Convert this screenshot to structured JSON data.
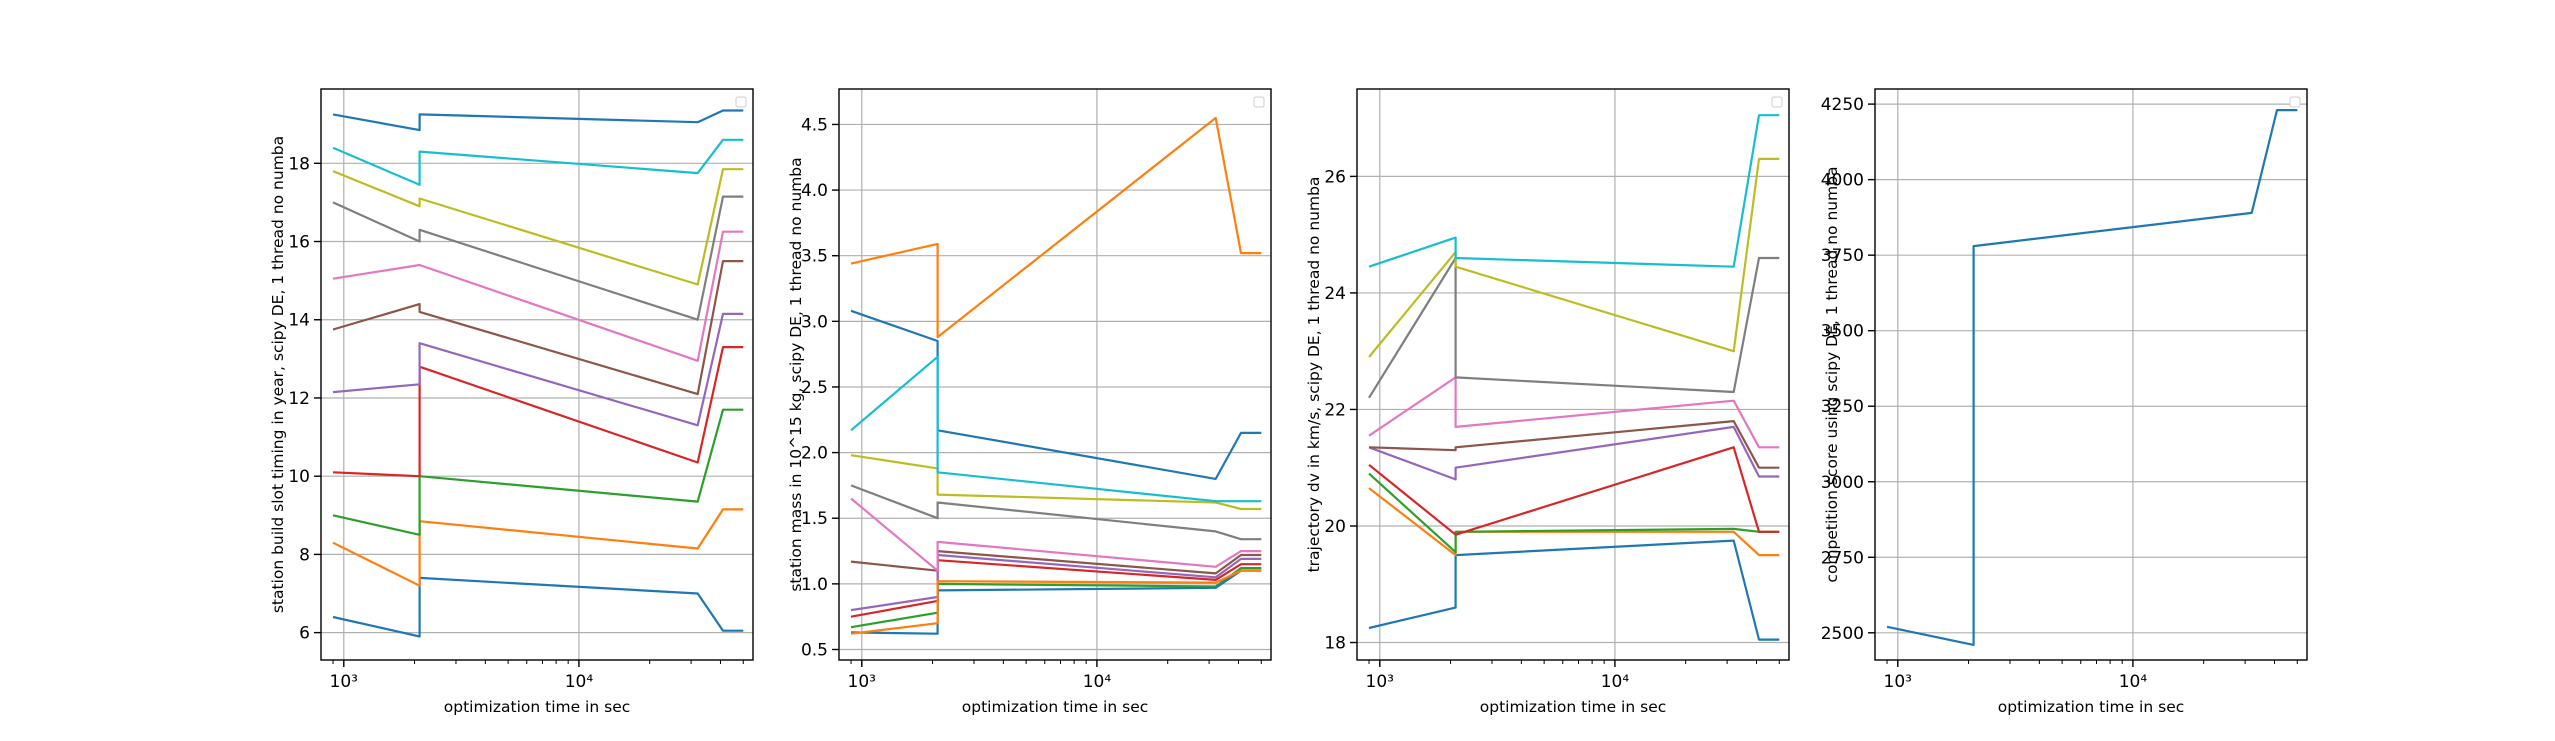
{
  "palette": [
    "#1f77b4",
    "#ff7f0e",
    "#2ca02c",
    "#d62728",
    "#9467bd",
    "#8c564b",
    "#e377c2",
    "#7f7f7f",
    "#bcbd22",
    "#17becf"
  ],
  "chart_data": [
    {
      "type": "line",
      "xscale": "log",
      "xlim": [
        800,
        55000
      ],
      "ylim": [
        5.3,
        19.9
      ],
      "xticks": [
        {
          "v": 1000,
          "label": "10³"
        },
        {
          "v": 10000,
          "label": "10⁴"
        }
      ],
      "yticks": [
        {
          "v": 6,
          "label": "6"
        },
        {
          "v": 8,
          "label": "8"
        },
        {
          "v": 10,
          "label": "10"
        },
        {
          "v": 12,
          "label": "12"
        },
        {
          "v": 14,
          "label": "14"
        },
        {
          "v": 16,
          "label": "16"
        },
        {
          "v": 18,
          "label": "18"
        }
      ],
      "xlabel": "optimization time in sec",
      "ylabel": "station build slot timing in year, scipy DE, 1 thread no numba",
      "grid": true,
      "legend": "top-right",
      "x": [
        900,
        2100,
        2100,
        32000,
        41000,
        50000
      ],
      "series": [
        {
          "values": [
            6.4,
            5.9,
            7.4,
            7.0,
            6.05,
            6.05
          ]
        },
        {
          "values": [
            8.3,
            7.2,
            8.85,
            8.15,
            9.15,
            9.15
          ]
        },
        {
          "values": [
            9.0,
            8.5,
            10.0,
            9.35,
            11.7,
            11.7
          ]
        },
        {
          "values": [
            10.1,
            10.0,
            12.8,
            10.35,
            13.3,
            13.3
          ]
        },
        {
          "values": [
            12.15,
            12.35,
            13.4,
            11.3,
            14.15,
            14.15
          ]
        },
        {
          "values": [
            13.75,
            14.4,
            14.2,
            12.1,
            15.5,
            15.5
          ]
        },
        {
          "values": [
            15.05,
            15.4,
            15.4,
            12.95,
            16.25,
            16.25
          ]
        },
        {
          "values": [
            17.0,
            16.0,
            16.3,
            14.0,
            17.15,
            17.15
          ]
        },
        {
          "values": [
            17.8,
            16.9,
            17.1,
            14.9,
            17.85,
            17.85
          ]
        },
        {
          "values": [
            18.4,
            17.45,
            18.3,
            17.75,
            18.6,
            18.6
          ]
        },
        {
          "values": [
            19.25,
            18.85,
            19.25,
            19.05,
            19.35,
            19.35
          ]
        }
      ]
    },
    {
      "type": "line",
      "xscale": "log",
      "xlim": [
        800,
        55000
      ],
      "ylim": [
        0.42,
        4.77
      ],
      "xticks": [
        {
          "v": 1000,
          "label": "10³"
        },
        {
          "v": 10000,
          "label": "10⁴"
        }
      ],
      "yticks": [
        {
          "v": 0.5,
          "label": "0.5"
        },
        {
          "v": 1.0,
          "label": "1.0"
        },
        {
          "v": 1.5,
          "label": "1.5"
        },
        {
          "v": 2.0,
          "label": "2.0"
        },
        {
          "v": 2.5,
          "label": "2.5"
        },
        {
          "v": 3.0,
          "label": "3.0"
        },
        {
          "v": 3.5,
          "label": "3.5"
        },
        {
          "v": 4.0,
          "label": "4.0"
        },
        {
          "v": 4.5,
          "label": "4.5"
        }
      ],
      "xlabel": "optimization time in sec",
      "ylabel": "station mass in 10^15 kg, scipy DE, 1 thread no numba",
      "grid": true,
      "legend": "top-right",
      "x": [
        900,
        2100,
        2100,
        32000,
        41000,
        50000
      ],
      "series": [
        {
          "values": [
            3.08,
            2.85,
            2.17,
            1.8,
            2.15,
            2.15
          ]
        },
        {
          "values": [
            3.44,
            3.59,
            2.88,
            4.55,
            3.52,
            3.52
          ]
        },
        {
          "values": [
            0.67,
            0.78,
            1.0,
            0.98,
            1.12,
            1.12
          ]
        },
        {
          "values": [
            0.75,
            0.87,
            1.18,
            1.03,
            1.15,
            1.15
          ]
        },
        {
          "values": [
            0.8,
            0.9,
            1.22,
            1.05,
            1.19,
            1.19
          ]
        },
        {
          "values": [
            1.17,
            1.1,
            1.25,
            1.08,
            1.22,
            1.22
          ]
        },
        {
          "values": [
            1.65,
            1.1,
            1.32,
            1.13,
            1.25,
            1.25
          ]
        },
        {
          "values": [
            1.75,
            1.5,
            1.62,
            1.4,
            1.34,
            1.34
          ]
        },
        {
          "values": [
            1.98,
            1.88,
            1.68,
            1.62,
            1.57,
            1.57
          ]
        },
        {
          "values": [
            2.17,
            2.73,
            1.85,
            1.63,
            1.63,
            1.63
          ]
        },
        {
          "values": [
            0.63,
            0.62,
            0.95,
            0.97,
            1.1,
            1.1
          ]
        },
        {
          "values": [
            0.62,
            0.7,
            1.02,
            1.01,
            1.1,
            1.1
          ]
        }
      ]
    },
    {
      "type": "line",
      "xscale": "log",
      "xlim": [
        800,
        55000
      ],
      "ylim": [
        17.7,
        27.5
      ],
      "xticks": [
        {
          "v": 1000,
          "label": "10³"
        },
        {
          "v": 10000,
          "label": "10⁴"
        }
      ],
      "yticks": [
        {
          "v": 18,
          "label": "18"
        },
        {
          "v": 20,
          "label": "20"
        },
        {
          "v": 22,
          "label": "22"
        },
        {
          "v": 24,
          "label": "24"
        },
        {
          "v": 26,
          "label": "26"
        }
      ],
      "xlabel": "optimization time in sec",
      "ylabel": "trajectory dv in km/s, scipy DE, 1 thread no numba",
      "grid": true,
      "legend": "top-right",
      "x": [
        900,
        2100,
        2100,
        32000,
        41000,
        50000
      ],
      "series": [
        {
          "values": [
            18.25,
            18.6,
            19.5,
            19.75,
            18.05,
            18.05
          ]
        },
        {
          "values": [
            20.65,
            19.5,
            19.9,
            19.9,
            19.5,
            19.5
          ]
        },
        {
          "values": [
            20.9,
            19.55,
            19.9,
            19.95,
            19.9,
            19.9
          ]
        },
        {
          "values": [
            21.05,
            19.85,
            19.85,
            21.35,
            19.9,
            19.9
          ]
        },
        {
          "values": [
            21.35,
            20.8,
            21.0,
            21.7,
            20.85,
            20.85
          ]
        },
        {
          "values": [
            21.35,
            21.3,
            21.35,
            21.8,
            21.0,
            21.0
          ]
        },
        {
          "values": [
            21.55,
            22.55,
            21.7,
            22.15,
            21.35,
            21.35
          ]
        },
        {
          "values": [
            22.2,
            24.6,
            22.55,
            22.3,
            24.6,
            24.6
          ]
        },
        {
          "values": [
            22.9,
            24.7,
            24.45,
            23.0,
            26.3,
            26.3
          ]
        },
        {
          "values": [
            24.45,
            24.95,
            24.6,
            24.45,
            27.05,
            27.05
          ]
        }
      ]
    },
    {
      "type": "line",
      "xscale": "log",
      "xlim": [
        800,
        55000
      ],
      "ylim": [
        2410,
        4300
      ],
      "xticks": [
        {
          "v": 1000,
          "label": "10³"
        },
        {
          "v": 10000,
          "label": "10⁴"
        }
      ],
      "yticks": [
        {
          "v": 2500,
          "label": "2500"
        },
        {
          "v": 2750,
          "label": "2750"
        },
        {
          "v": 3000,
          "label": "3000"
        },
        {
          "v": 3250,
          "label": "3250"
        },
        {
          "v": 3500,
          "label": "3500"
        },
        {
          "v": 3750,
          "label": "3750"
        },
        {
          "v": 4000,
          "label": "4000"
        },
        {
          "v": 4250,
          "label": "4250"
        }
      ],
      "xlabel": "optimization time in sec",
      "ylabel": "competition score using scipy DE, 1 thread no numba",
      "grid": true,
      "legend": "top-right",
      "x": [
        900,
        2100,
        2100,
        32000,
        41000,
        50000
      ],
      "series": [
        {
          "values": [
            2520,
            2460,
            3780,
            3890,
            4230,
            4230
          ]
        }
      ]
    }
  ]
}
